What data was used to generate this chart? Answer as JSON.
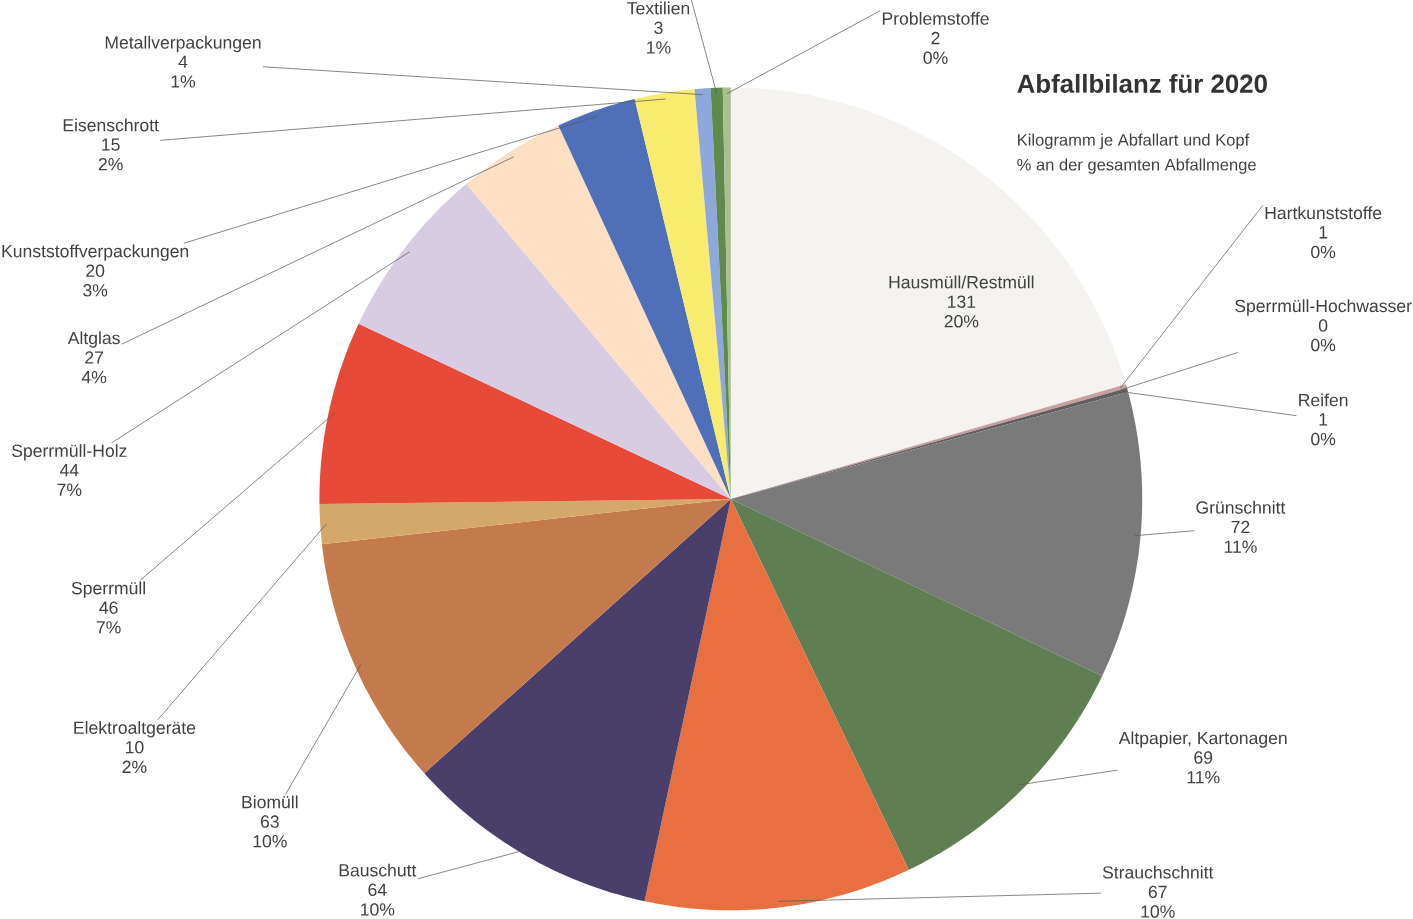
{
  "chart_data": {
    "type": "pie",
    "title": "Abfallbilanz für 2020",
    "subtitle": "Kilogramm je Abfallart und Kopf",
    "annotations": [
      "% an der gesamten Abfallmenge"
    ],
    "categories": [
      "Hausmüll/Restmüll",
      "Hartkunststoffe",
      "Sperrmüll-Hochwasser",
      "Reifen",
      "Grünschnitt",
      "Altpapier, Kartonagen",
      "Strauchschnitt",
      "Bauschutt",
      "Biomüll",
      "Elektroaltgeräte",
      "Sperrmüll",
      "Sperrmüll-Holz",
      "Altglas",
      "Kunststoffverpackungen",
      "Eisenschrott",
      "Metallverpackungen",
      "Textilien",
      "Problemstoffe"
    ],
    "values": [
      131,
      1,
      0,
      1,
      72,
      69,
      67,
      64,
      63,
      10,
      46,
      44,
      27,
      20,
      15,
      4,
      3,
      2
    ],
    "colors": [
      "#f4f3f0",
      "#c8a0a0",
      "#e8b0c0",
      "#606060",
      "#7a7a7a",
      "#5f7f52",
      "#e87040",
      "#4a3f6b",
      "#c47a4c",
      "#d4a86a",
      "#e84a3a",
      "#d8cce2",
      "#fde0c4",
      "#4f6fb8",
      "#f8ec70",
      "#8fa8dc",
      "#5f8a4a",
      "#a8c090"
    ],
    "value_labels": [
      "131 20%",
      "1 0%",
      "0 0%",
      "1 0%",
      "72 11%",
      "69 11%",
      "67 10%",
      "64 10%",
      "63 10%",
      "10 2%",
      "46 7%",
      "44 7%",
      "27 4%",
      "20 3%",
      "15 2%",
      "4 1%",
      "3 1%",
      "2 0%"
    ]
  }
}
